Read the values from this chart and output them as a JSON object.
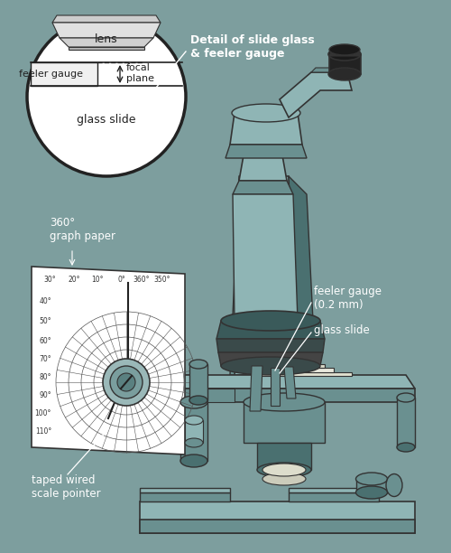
{
  "bg_color": "#7d9e9e",
  "line_color": "#333333",
  "mic_light": "#8fb5b5",
  "mic_mid": "#6a9090",
  "mic_dark": "#4a7070",
  "mic_darker": "#3a5a5a",
  "white": "#ffffff",
  "near_black": "#1a1a1a",
  "dark_gray": "#2a2a2a",
  "labels": {
    "detail": "Detail of slide glass\n& feeler gauge",
    "lens": "lens",
    "feeler_gauge_inset": "feeler gauge",
    "focal_plane": "focal\nplane",
    "glass_slide_inset": "glass slide",
    "graph_paper": "360°\ngraph paper",
    "feeler_gauge": "feeler gauge\n(0.2 mm)",
    "glass_slide": "glass slide",
    "taped": "taped wired\nscale pointer"
  },
  "polar_labels_top": [
    "30°",
    "20°",
    "10°",
    "0°",
    "360°",
    "350°"
  ],
  "polar_labels_left": [
    "40",
    "50",
    "60",
    "70",
    "80",
    "90",
    "100",
    "110"
  ]
}
